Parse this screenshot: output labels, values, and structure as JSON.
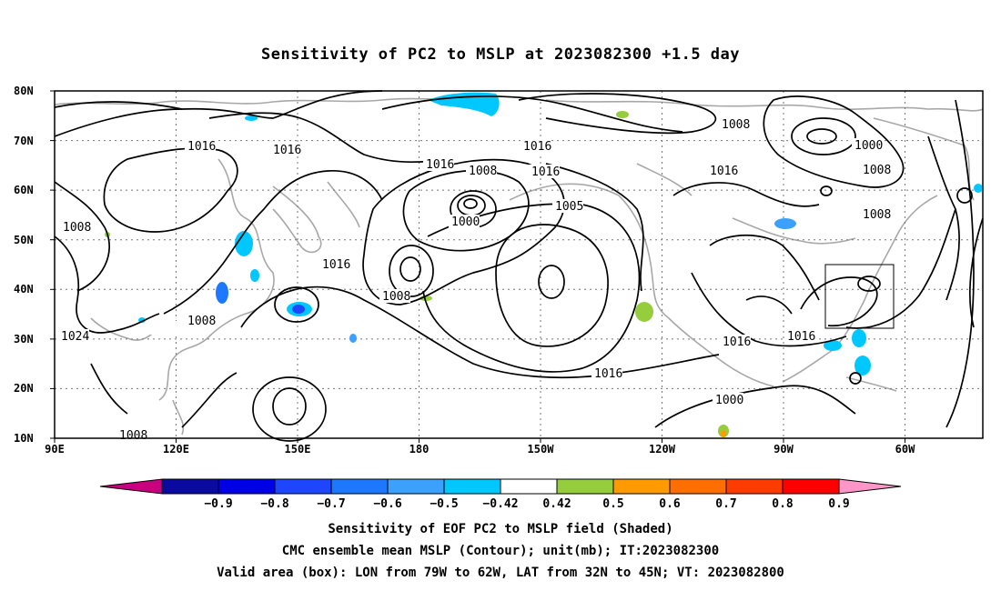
{
  "title": "Sensitivity of PC2 to MSLP at 2023082300 +1.5 day",
  "lat_labels": [
    "80N",
    "70N",
    "60N",
    "50N",
    "40N",
    "30N",
    "20N",
    "10N"
  ],
  "lon_labels": [
    "90E",
    "120E",
    "150E",
    "180",
    "150W",
    "120W",
    "90W",
    "60W"
  ],
  "contour_labels": [
    "1016",
    "1016",
    "1016",
    "1016",
    "1016",
    "1016",
    "1016",
    "1016",
    "1016",
    "1016",
    "1008",
    "1008",
    "1008",
    "1008",
    "1008",
    "1008",
    "1008",
    "1000",
    "1000",
    "1000",
    "1024",
    "1005"
  ],
  "colorbar": {
    "labels": [
      "-0.9",
      "-0.8",
      "-0.7",
      "-0.6",
      "-0.5",
      "-0.42",
      "0.42",
      "0.5",
      "0.6",
      "0.7",
      "0.8",
      "0.9"
    ],
    "colors": [
      "#c8007f",
      "#0a0aa0",
      "#0000e6",
      "#1e46ff",
      "#1e78ff",
      "#3ca0ff",
      "#00c8ff",
      "#ffffff",
      "#96cd3c",
      "#ff9b00",
      "#ff6e00",
      "#ff3c00",
      "#ff0000",
      "#ff96c8"
    ]
  },
  "valid_box": {
    "lon_from": "79W",
    "lon_to": "62W",
    "lat_from": "32N",
    "lat_to": "45N"
  },
  "captions": {
    "line1": "Sensitivity of EOF PC2 to MSLP field (Shaded)",
    "line2": "CMC ensemble mean MSLP (Contour); unit(mb); IT:2023082300",
    "line3": "Valid area (box): LON from 79W to 62W, LAT from 32N to 45N; VT: 2023082800"
  }
}
